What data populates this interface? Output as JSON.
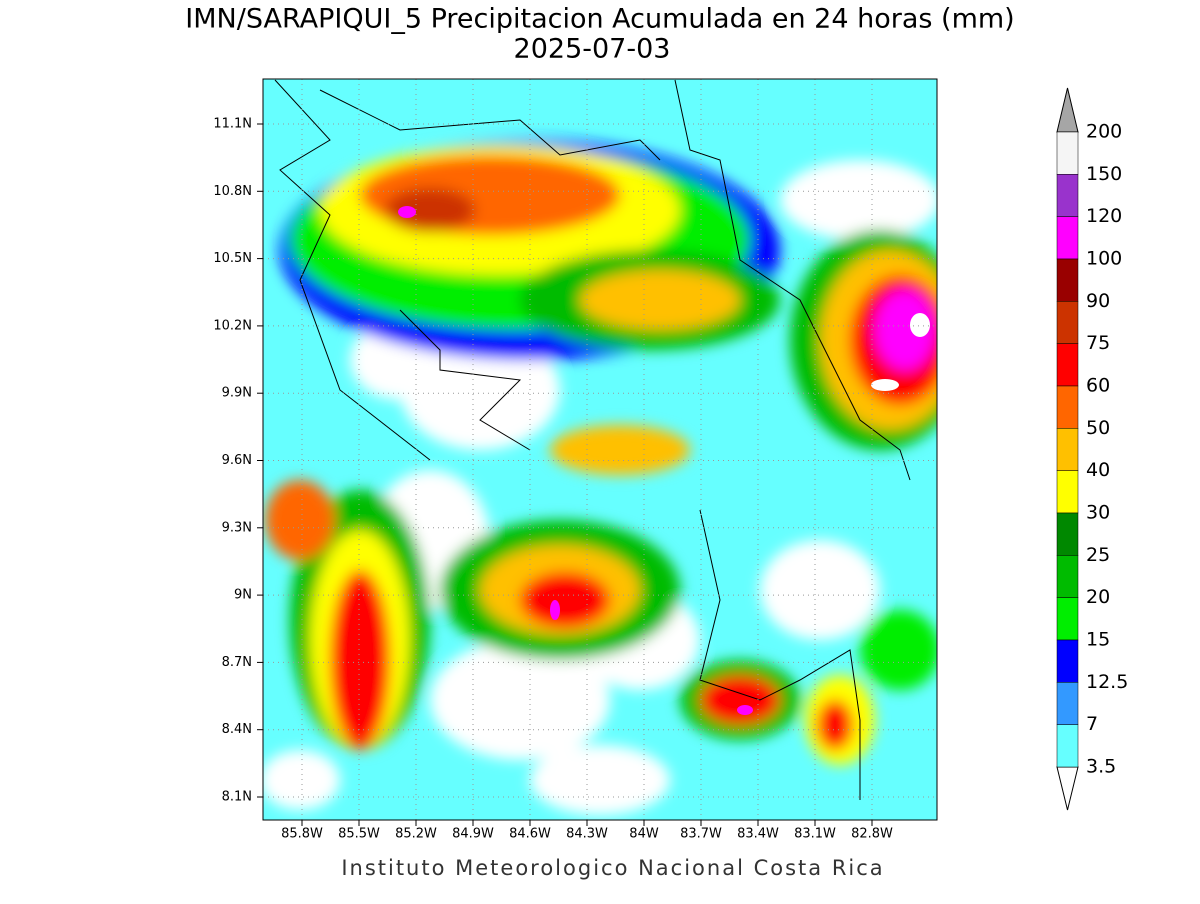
{
  "header": {
    "title": "IMN/SARAPIQUI_5 Precipitacion Acumulada en 24 horas (mm)",
    "date": "2025-07-03"
  },
  "map": {
    "lat_labels": [
      "11.1N",
      "10.8N",
      "10.5N",
      "10.2N",
      "9.9N",
      "9.6N",
      "9.3N",
      "9N",
      "8.7N",
      "8.4N",
      "8.1N"
    ],
    "lon_labels": [
      "85.8W",
      "85.5W",
      "85.2W",
      "84.9W",
      "84.6W",
      "84.3W",
      "84W",
      "83.7W",
      "83.4W",
      "83.1W",
      "82.8W"
    ]
  },
  "colorbar": {
    "labels": [
      "200",
      "150",
      "120",
      "100",
      "90",
      "75",
      "60",
      "50",
      "40",
      "30",
      "25",
      "20",
      "15",
      "12.5",
      "7",
      "3.5"
    ],
    "colors": [
      "#f5f5f5",
      "#9933cc",
      "#ff00ff",
      "#990000",
      "#cc3300",
      "#ff0000",
      "#ff6600",
      "#ffc000",
      "#ffff00",
      "#008800",
      "#00bb00",
      "#00ee00",
      "#0000ff",
      "#3399ff",
      "#66ffff"
    ],
    "over_color": "#a6a6a6",
    "under_color": "#ffffff"
  },
  "footer": "Instituto Meteorologico Nacional Costa Rica"
}
